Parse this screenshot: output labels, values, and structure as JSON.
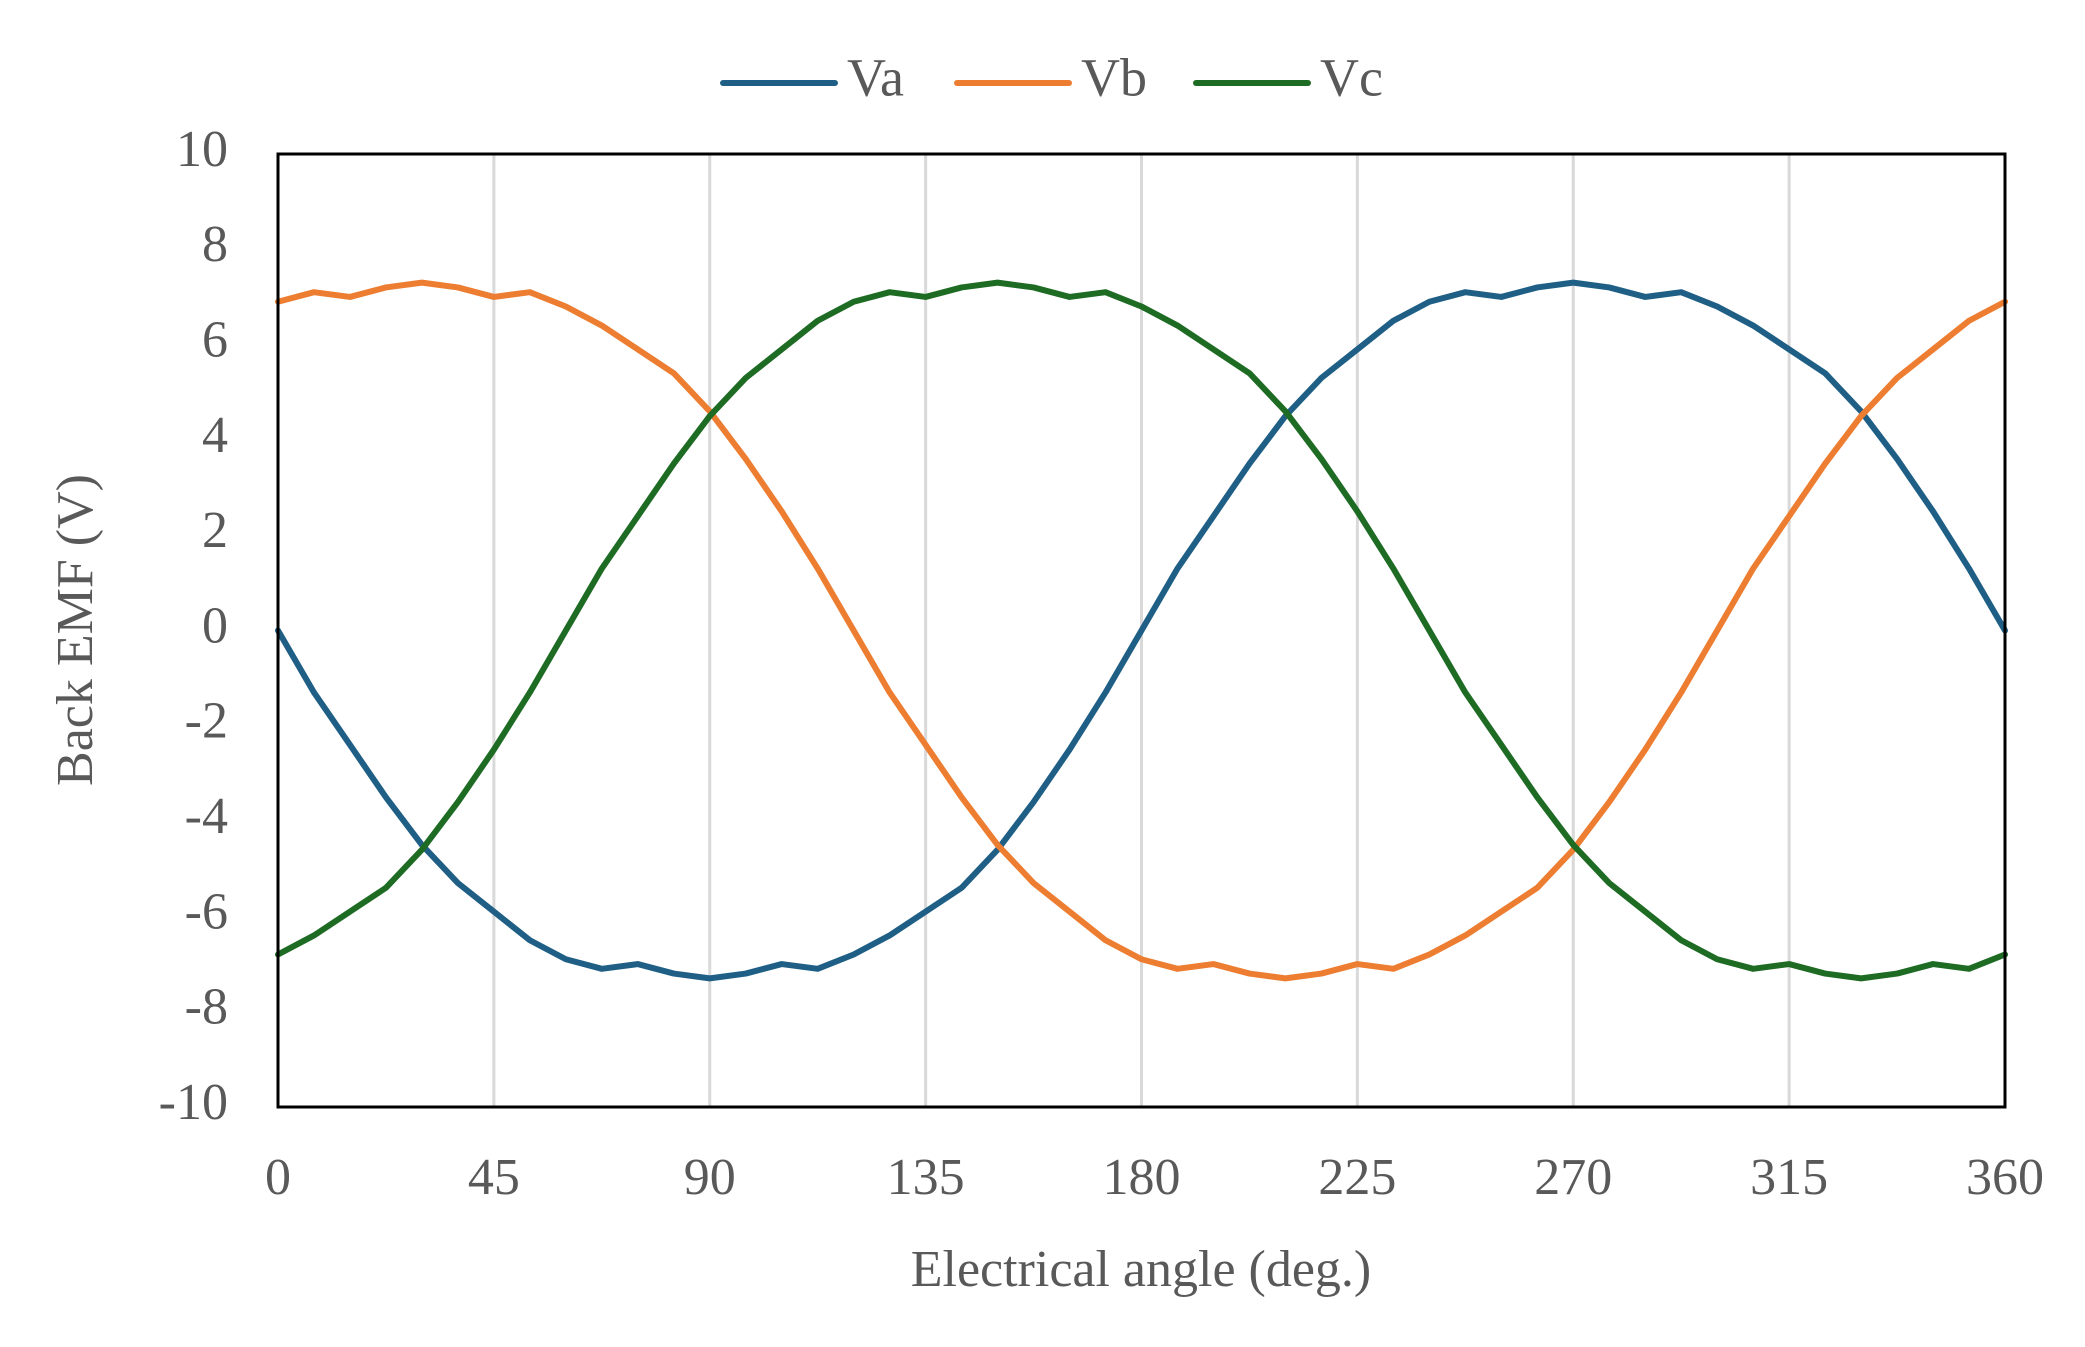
{
  "chart_data": {
    "type": "line",
    "xlabel": "Electrical angle (deg.)",
    "ylabel": "Back EMF (V)",
    "x": [
      0,
      7.5,
      15,
      22.5,
      30,
      37.5,
      45,
      52.5,
      60,
      67.5,
      75,
      82.5,
      90,
      97.5,
      105,
      112.5,
      120,
      127.5,
      135,
      142.5,
      150,
      157.5,
      165,
      172.5,
      180,
      187.5,
      195,
      202.5,
      210,
      217.5,
      225,
      232.5,
      240,
      247.5,
      255,
      262.5,
      270,
      277.5,
      285,
      292.5,
      300,
      307.5,
      315,
      322.5,
      330,
      337.5,
      345,
      352.5,
      360
    ],
    "series": [
      {
        "name": "Va",
        "color": "#1f5f86",
        "values": [
          0,
          -1.3,
          -2.4,
          -3.5,
          -4.5,
          -5.3,
          -5.9,
          -6.5,
          -6.9,
          -7.1,
          -7.0,
          -7.2,
          -7.3,
          -7.2,
          -7.0,
          -7.1,
          -6.8,
          -6.4,
          -5.9,
          -5.4,
          -4.6,
          -3.6,
          -2.5,
          -1.3,
          0,
          1.3,
          2.4,
          3.5,
          4.5,
          5.3,
          5.9,
          6.5,
          6.9,
          7.1,
          7.0,
          7.2,
          7.3,
          7.2,
          7.0,
          7.1,
          6.8,
          6.4,
          5.9,
          5.4,
          4.6,
          3.6,
          2.5,
          1.3,
          0
        ]
      },
      {
        "name": "Vb",
        "color": "#ed7d31",
        "values": [
          6.9,
          7.1,
          7.0,
          7.2,
          7.3,
          7.2,
          7.0,
          7.1,
          6.8,
          6.4,
          5.9,
          5.4,
          4.6,
          3.6,
          2.5,
          1.3,
          0,
          -1.3,
          -2.4,
          -3.5,
          -4.5,
          -5.3,
          -5.9,
          -6.5,
          -6.9,
          -7.1,
          -7.0,
          -7.2,
          -7.3,
          -7.2,
          -7.0,
          -7.1,
          -6.8,
          -6.4,
          -5.9,
          -5.4,
          -4.6,
          -3.6,
          -2.5,
          -1.3,
          0,
          1.3,
          2.4,
          3.5,
          4.5,
          5.3,
          5.9,
          6.5,
          6.9
        ]
      },
      {
        "name": "Vc",
        "color": "#1e6b24",
        "values": [
          -6.8,
          -6.4,
          -5.9,
          -5.4,
          -4.6,
          -3.6,
          -2.5,
          -1.3,
          0,
          1.3,
          2.4,
          3.5,
          4.5,
          5.3,
          5.9,
          6.5,
          6.9,
          7.1,
          7.0,
          7.2,
          7.3,
          7.2,
          7.0,
          7.1,
          6.8,
          6.4,
          5.9,
          5.4,
          4.6,
          3.6,
          2.5,
          1.3,
          0,
          -1.3,
          -2.4,
          -3.5,
          -4.5,
          -5.3,
          -5.9,
          -6.5,
          -6.9,
          -7.1,
          -7.0,
          -7.2,
          -7.3,
          -7.2,
          -7.0,
          -7.1,
          -6.8
        ]
      }
    ],
    "xlim": [
      0,
      360
    ],
    "xticks": [
      0,
      45,
      90,
      135,
      180,
      225,
      270,
      315,
      360
    ],
    "ylim": [
      -10,
      10
    ],
    "yticks": [
      -10,
      -8,
      -6,
      -4,
      -2,
      0,
      2,
      4,
      6,
      8,
      10
    ],
    "grid": "x",
    "legend": "top"
  }
}
